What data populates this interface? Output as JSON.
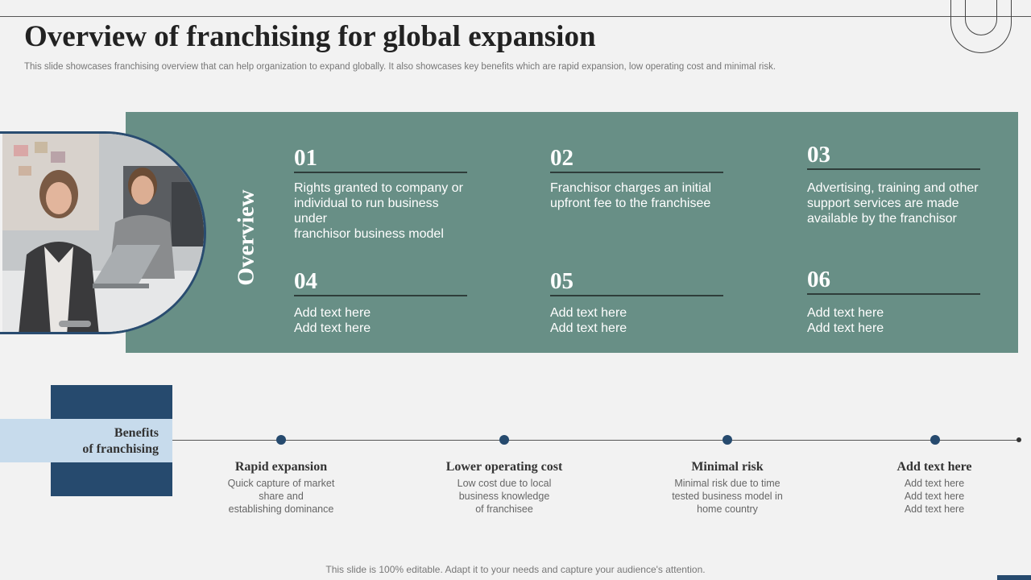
{
  "title": "Overview of franchising for global expansion",
  "subtitle": "This slide showcases franchising overview that can help organization to expand globally. It also showcases key benefits which are rapid expansion, low operating cost and minimal risk.",
  "overview": {
    "label": "Overview",
    "items": [
      {
        "num": "01",
        "lines": [
          "Rights granted to company or",
          "individual to run business under",
          "franchisor business model"
        ]
      },
      {
        "num": "02",
        "lines": [
          "Franchisor charges an initial",
          "upfront fee to the franchisee"
        ]
      },
      {
        "num": "03",
        "lines": [
          "Advertising, training and other",
          "support services are made",
          "available by the franchisor"
        ]
      },
      {
        "num": "04",
        "lines": [
          "Add text here",
          "Add text here"
        ]
      },
      {
        "num": "05",
        "lines": [
          "Add text here",
          "Add text here"
        ]
      },
      {
        "num": "06",
        "lines": [
          "Add text here",
          "Add text here"
        ]
      }
    ]
  },
  "benefits": {
    "label_lines": [
      "Benefits",
      "of franchising"
    ],
    "items": [
      {
        "title": "Rapid expansion",
        "lines": [
          "Quick capture of market",
          "share and",
          "establishing dominance"
        ]
      },
      {
        "title": "Lower operating cost",
        "lines": [
          "Low cost due to local",
          "business knowledge",
          "of franchisee"
        ]
      },
      {
        "title": "Minimal risk",
        "lines": [
          "Minimal risk due to time",
          "tested business model in",
          "home country"
        ]
      },
      {
        "title": "Add text here",
        "lines": [
          "Add text here",
          "Add text here",
          "Add text here"
        ]
      }
    ]
  },
  "footer": "This slide is 100% editable. Adapt it to your needs and capture your audience's attention.",
  "colors": {
    "panel": "#688f86",
    "navy": "#264a6e",
    "light_blue": "#c7dbec",
    "background": "#f2f2f2"
  }
}
